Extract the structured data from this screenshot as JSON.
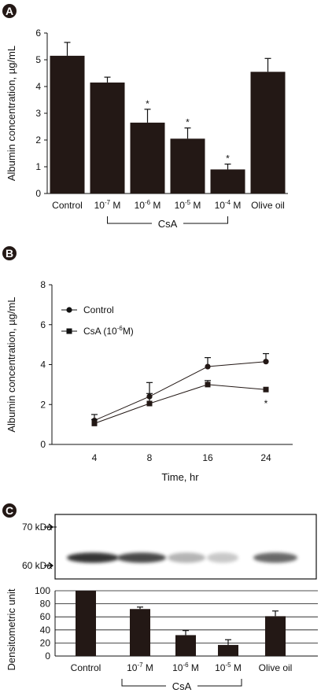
{
  "colors": {
    "bar": "#231815",
    "line": "#231815",
    "panel_badge": "#231815",
    "gel_band": "#2a2a2a"
  },
  "chart_data": [
    {
      "panel": "A",
      "type": "bar",
      "categories": [
        {
          "base": "Control",
          "exp": "",
          "unit": ""
        },
        {
          "base": "10",
          "exp": "-7",
          "unit": " M"
        },
        {
          "base": "10",
          "exp": "-6",
          "unit": " M"
        },
        {
          "base": "10",
          "exp": "-5",
          "unit": " M"
        },
        {
          "base": "10",
          "exp": "-4",
          "unit": " M"
        },
        {
          "base": "Olive oil",
          "exp": "",
          "unit": ""
        }
      ],
      "values": [
        5.15,
        4.15,
        2.65,
        2.05,
        0.9,
        4.55
      ],
      "errors": [
        0.5,
        0.2,
        0.5,
        0.4,
        0.2,
        0.5
      ],
      "significance": [
        "",
        "",
        "*",
        "*",
        "*",
        ""
      ],
      "ylabel": "Albumin concentration, µg/mL",
      "ylim": [
        0,
        6
      ],
      "yticks": [
        0,
        1,
        2,
        3,
        4,
        5,
        6
      ],
      "group_label": "CsA",
      "grid": false
    },
    {
      "panel": "B",
      "type": "line",
      "x": [
        4,
        8,
        16,
        24
      ],
      "xticks": [
        "4",
        "8",
        "16",
        "24"
      ],
      "series": [
        {
          "name": "Control",
          "marker": "circle",
          "values": [
            1.2,
            2.4,
            3.9,
            4.15
          ],
          "errors": [
            0.3,
            0.7,
            0.45,
            0.4
          ]
        },
        {
          "name": "CsA (10",
          "name_exp": "-6",
          "name_tail": "M)",
          "marker": "square",
          "values": [
            1.05,
            2.05,
            3.0,
            2.75
          ],
          "errors": [
            0.2,
            0.5,
            0.2,
            0.0
          ]
        }
      ],
      "significance": [
        {
          "series": 1,
          "index": 3,
          "label": "*"
        }
      ],
      "xlabel": "Time, hr",
      "ylabel": "Albumin concentration, µg/mL",
      "ylim": [
        0,
        8
      ],
      "yticks": [
        0,
        2,
        4,
        6,
        8
      ],
      "legend": "top-left",
      "grid": false
    },
    {
      "panel": "C",
      "type": "bar",
      "blot_markers": [
        "70 kDa",
        "60 kDa"
      ],
      "categories": [
        {
          "base": "Control",
          "exp": "",
          "unit": ""
        },
        {
          "base": "10",
          "exp": "-7",
          "unit": " M"
        },
        {
          "base": "10",
          "exp": "-6",
          "unit": " M"
        },
        {
          "base": "10",
          "exp": "-5",
          "unit": " M"
        },
        {
          "base": "Olive oil",
          "exp": "",
          "unit": ""
        }
      ],
      "values": [
        100,
        72,
        32,
        17,
        61
      ],
      "errors": [
        0,
        3,
        7,
        8,
        8
      ],
      "ylabel": "Densitometric unit",
      "ylim": [
        0,
        100
      ],
      "yticks": [
        0,
        20,
        40,
        60,
        80,
        100
      ],
      "group_label": "CsA",
      "grid": true
    }
  ]
}
